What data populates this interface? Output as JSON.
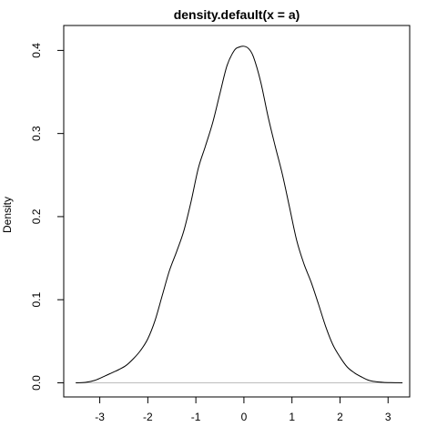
{
  "chart_data": {
    "type": "line",
    "title": "density.default(x = a)",
    "xlabel": "",
    "ylabel": "Density",
    "xlim": [
      -3.75,
      3.45
    ],
    "ylim": [
      -0.017,
      0.43
    ],
    "xticks": [
      -3,
      -2,
      -1,
      0,
      1,
      2,
      3
    ],
    "xtick_labels": [
      "-3",
      "-2",
      "-1",
      "0",
      "1",
      "2",
      "3"
    ],
    "yticks": [
      0.0,
      0.1,
      0.2,
      0.3,
      0.4
    ],
    "ytick_labels": [
      "0.0",
      "0.1",
      "0.2",
      "0.3",
      "0.4"
    ],
    "grid": false,
    "series": [
      {
        "x": [
          -3.5,
          -3.3,
          -3.1,
          -2.9,
          -2.75,
          -2.6,
          -2.45,
          -2.3,
          -2.15,
          -2.0,
          -1.85,
          -1.7,
          -1.55,
          -1.4,
          -1.25,
          -1.1,
          -0.95,
          -0.8,
          -0.65,
          -0.5,
          -0.35,
          -0.2,
          -0.1,
          0.0,
          0.1,
          0.2,
          0.35,
          0.5,
          0.65,
          0.8,
          0.95,
          1.1,
          1.25,
          1.4,
          1.55,
          1.7,
          1.85,
          2.0,
          2.15,
          2.3,
          2.45,
          2.6,
          2.75,
          2.9,
          3.05,
          3.2,
          3.3
        ],
        "y": [
          0.0,
          0.0005,
          0.003,
          0.008,
          0.012,
          0.016,
          0.021,
          0.029,
          0.039,
          0.053,
          0.075,
          0.105,
          0.135,
          0.158,
          0.183,
          0.218,
          0.258,
          0.285,
          0.313,
          0.348,
          0.382,
          0.4,
          0.404,
          0.405,
          0.402,
          0.392,
          0.362,
          0.321,
          0.285,
          0.251,
          0.211,
          0.171,
          0.143,
          0.121,
          0.095,
          0.068,
          0.046,
          0.031,
          0.019,
          0.012,
          0.007,
          0.003,
          0.0013,
          0.0005,
          0.0002,
          0.0001,
          0.0
        ]
      }
    ],
    "line_color": "#000000"
  }
}
